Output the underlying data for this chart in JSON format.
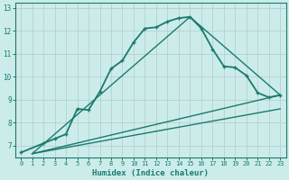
{
  "xlabel": "Humidex (Indice chaleur)",
  "bg_color": "#ccecea",
  "grid_color": "#b0cccc",
  "line_color": "#1a7a6e",
  "xlim": [
    -0.5,
    23.5
  ],
  "ylim": [
    6.5,
    13.2
  ],
  "yticks": [
    7,
    8,
    9,
    10,
    11,
    12,
    13
  ],
  "xticks": [
    0,
    1,
    2,
    3,
    4,
    5,
    6,
    7,
    8,
    9,
    10,
    11,
    12,
    13,
    14,
    15,
    16,
    17,
    18,
    19,
    20,
    21,
    22,
    23
  ],
  "series": [
    {
      "x": [
        0,
        2,
        3,
        4,
        5,
        6,
        7,
        8,
        9,
        10,
        11,
        12,
        13,
        14,
        15,
        16,
        17,
        18,
        19,
        20,
        21,
        22,
        23
      ],
      "y": [
        6.7,
        7.1,
        7.3,
        7.5,
        8.6,
        8.55,
        9.35,
        10.35,
        10.7,
        11.5,
        12.1,
        12.15,
        12.4,
        12.55,
        12.6,
        12.1,
        11.2,
        10.45,
        10.4,
        10.05,
        9.3,
        9.1,
        9.2
      ],
      "marker": "+",
      "markersize": 3.5,
      "linewidth": 1.3
    },
    {
      "x": [
        1,
        23
      ],
      "y": [
        6.65,
        8.6
      ],
      "marker": null,
      "markersize": 0,
      "linewidth": 1.0
    },
    {
      "x": [
        1,
        23
      ],
      "y": [
        6.65,
        9.2
      ],
      "marker": null,
      "markersize": 0,
      "linewidth": 1.0
    },
    {
      "x": [
        1,
        15,
        23
      ],
      "y": [
        6.65,
        12.6,
        9.2
      ],
      "marker": null,
      "markersize": 0,
      "linewidth": 1.0
    }
  ]
}
